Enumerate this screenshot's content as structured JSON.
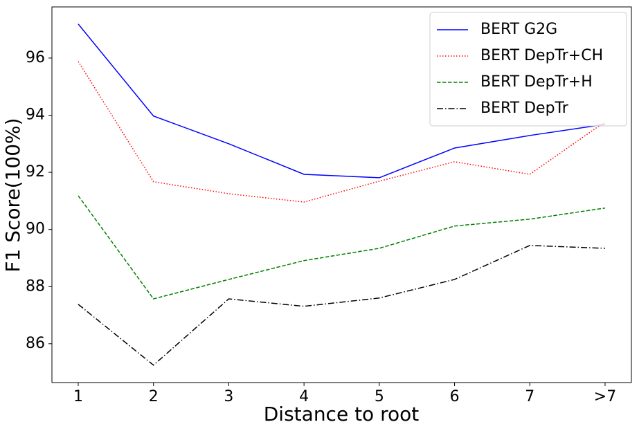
{
  "chart_data": {
    "type": "line",
    "xlabel": "Distance to root",
    "ylabel": "F1 Score(100%)",
    "categories": [
      "1",
      "2",
      "3",
      "4",
      "5",
      "6",
      "7",
      ">7"
    ],
    "ylim": [
      84.64,
      97.79
    ],
    "yticks": [
      86,
      88,
      90,
      92,
      94,
      96
    ],
    "legend": "upper right",
    "series": [
      {
        "name": "BERT G2G",
        "color": "#0000ff",
        "style": "solid",
        "values": [
          97.19,
          93.97,
          93.0,
          91.93,
          91.81,
          92.85,
          93.29,
          93.68
        ]
      },
      {
        "name": "BERT DepTr+CH",
        "color": "#ff0000",
        "style": "dotted",
        "values": [
          95.88,
          91.67,
          91.25,
          90.96,
          91.69,
          92.37,
          91.93,
          93.77
        ]
      },
      {
        "name": "BERT DepTr+H",
        "color": "#008000",
        "style": "dashed",
        "values": [
          91.18,
          87.57,
          88.25,
          88.91,
          89.34,
          90.12,
          90.36,
          90.75
        ]
      },
      {
        "name": "BERT DepTr",
        "color": "#000000",
        "style": "dashdot",
        "values": [
          87.38,
          85.25,
          87.57,
          87.31,
          87.6,
          88.25,
          89.44,
          89.34
        ]
      }
    ]
  }
}
